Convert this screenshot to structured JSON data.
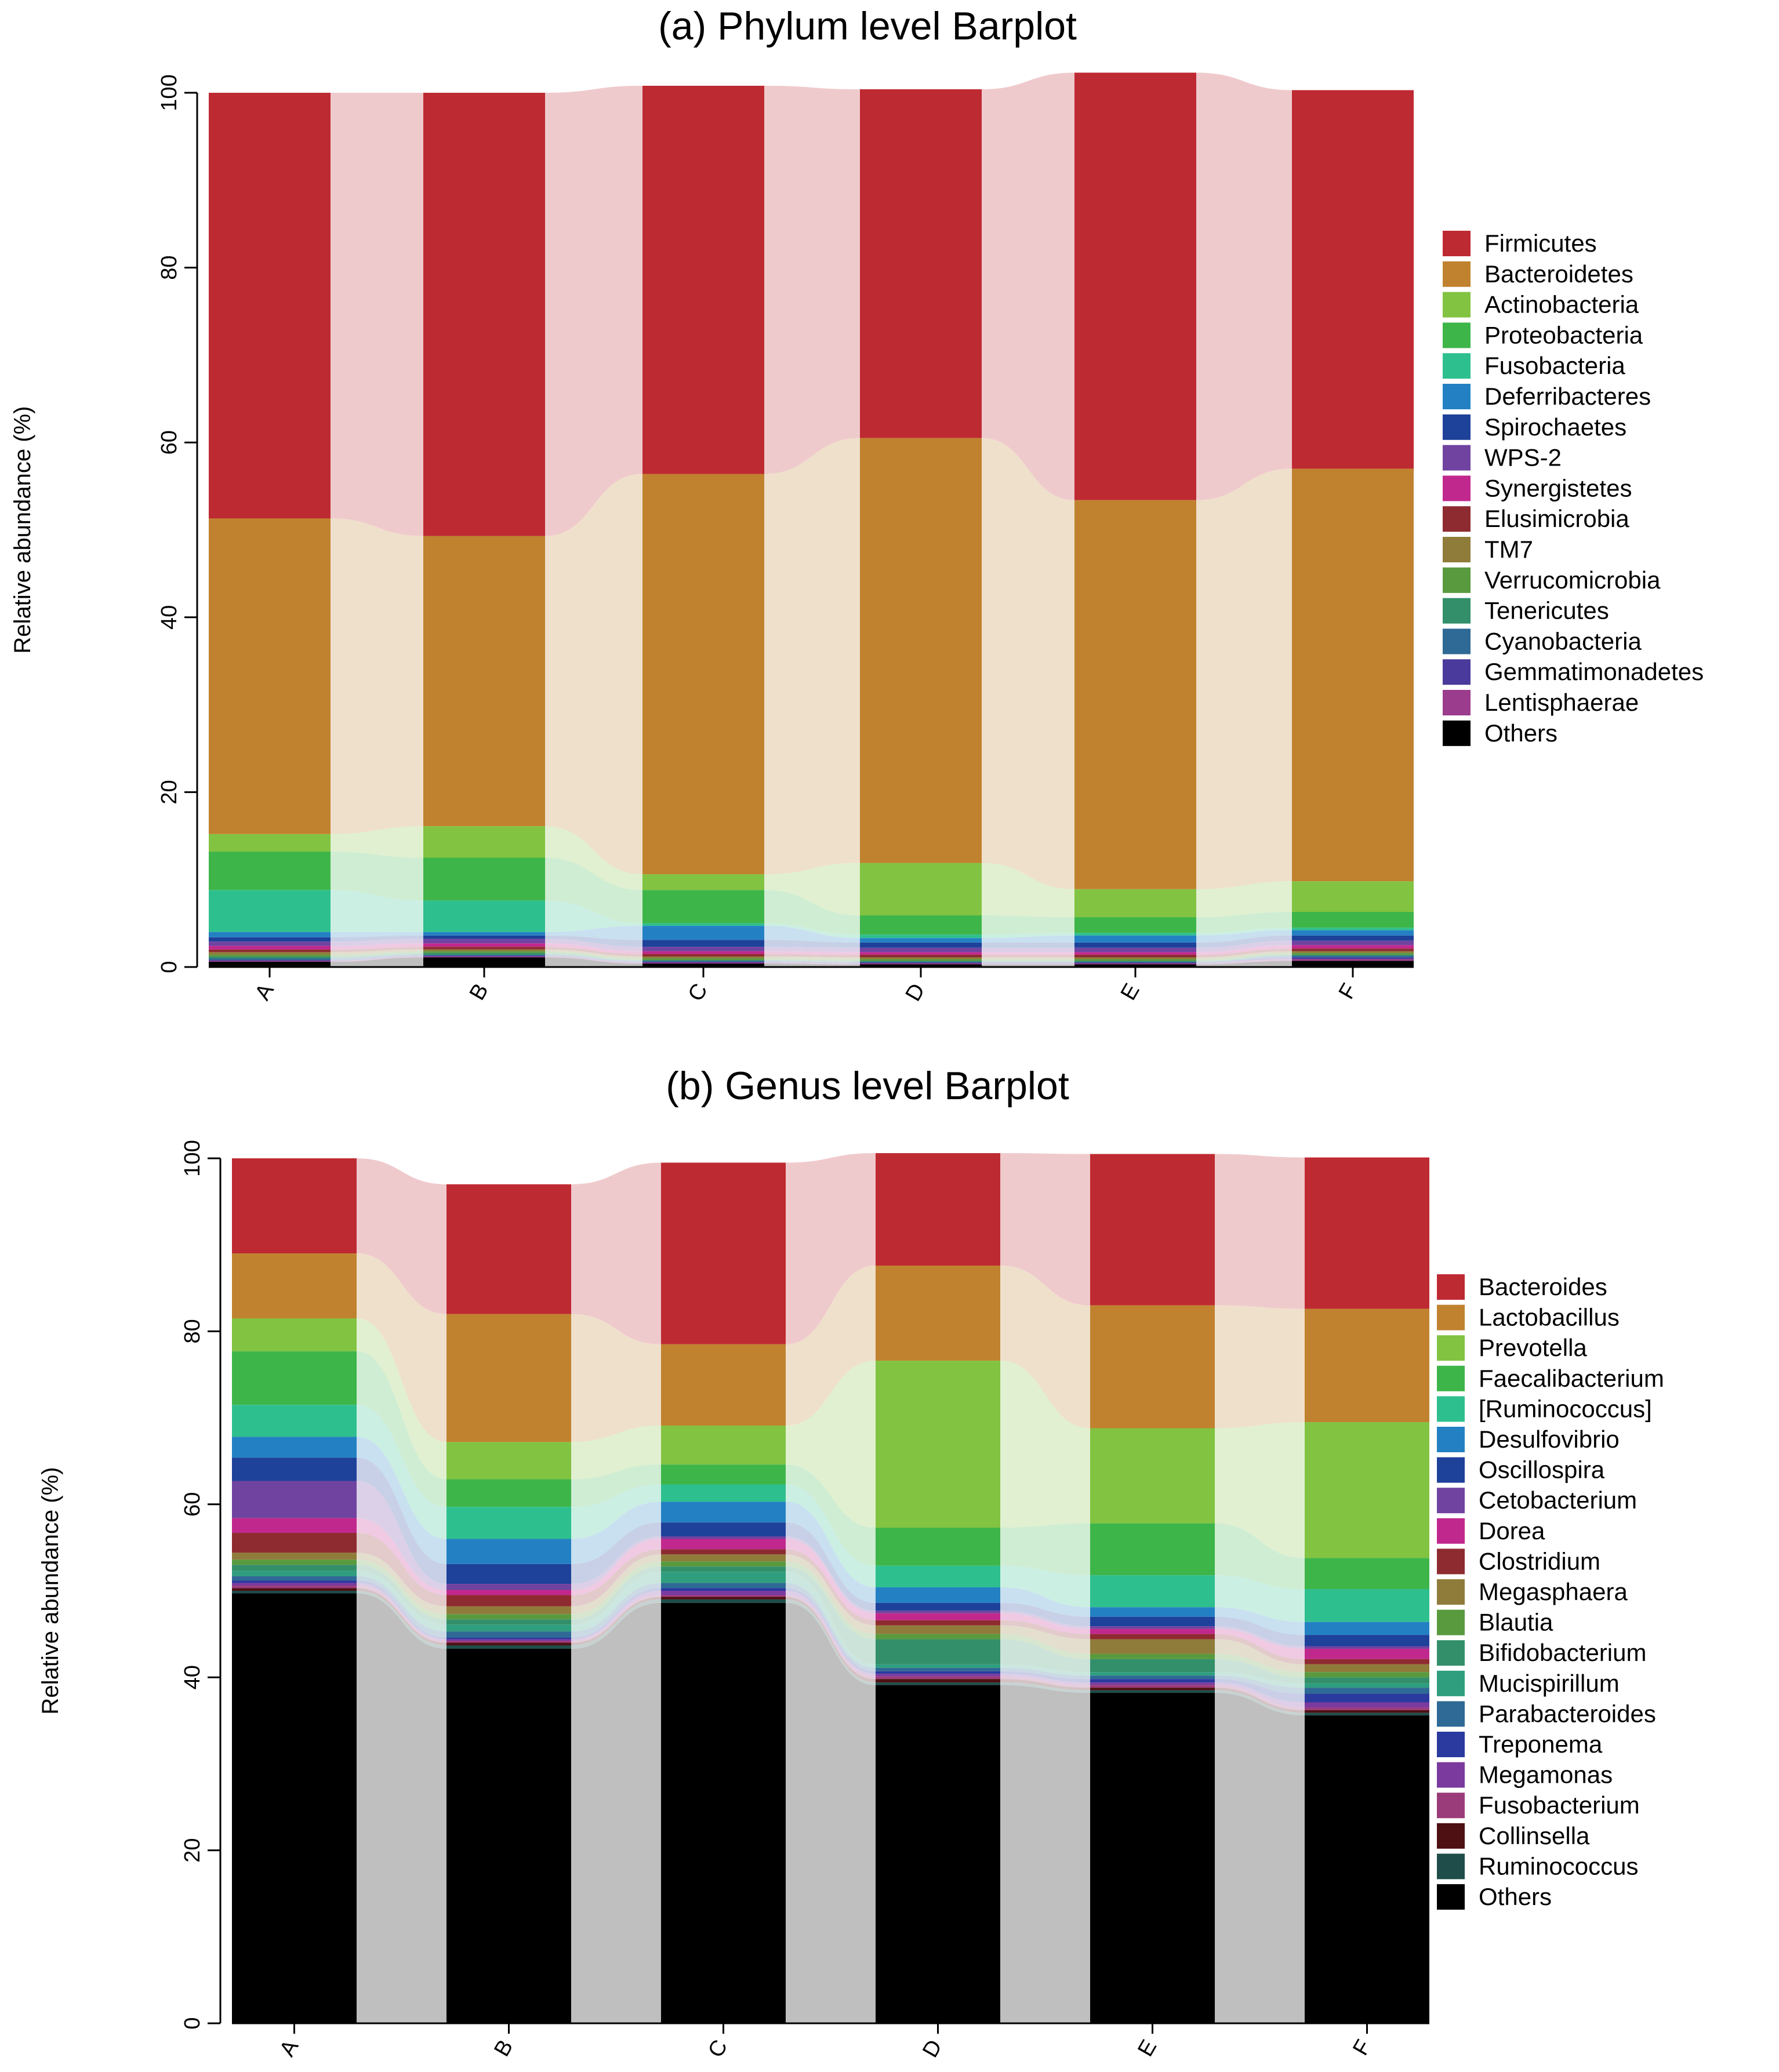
{
  "chart_data": [
    {
      "type": "bar",
      "stacked": true,
      "title": "(a) Phylum level Barplot",
      "ylabel": "Relative abundance (%)",
      "xlabel": "",
      "ylim": [
        0,
        100
      ],
      "yticks": [
        0,
        20,
        40,
        60,
        80,
        100
      ],
      "categories": [
        "A",
        "B",
        "C",
        "D",
        "E",
        "F"
      ],
      "legend_position": "right",
      "series": [
        {
          "name": "Firmicutes",
          "color": "#BE2A32",
          "values": [
            48.7,
            50.7,
            44.4,
            39.9,
            48.9,
            43.3
          ]
        },
        {
          "name": "Bacteroidetes",
          "color": "#C0822F",
          "values": [
            36.1,
            33.2,
            45.8,
            48.6,
            44.5,
            47.2
          ]
        },
        {
          "name": "Actinobacteria",
          "color": "#82C341",
          "values": [
            2.0,
            3.6,
            1.8,
            6.0,
            3.2,
            3.5
          ]
        },
        {
          "name": "Proteobacteria",
          "color": "#3EB549",
          "values": [
            4.4,
            4.9,
            3.8,
            2.2,
            1.8,
            1.8
          ]
        },
        {
          "name": "Fusobacteria",
          "color": "#2EBF8E",
          "values": [
            4.8,
            3.6,
            0.3,
            0.4,
            0.3,
            0.3
          ]
        },
        {
          "name": "Deferribacteres",
          "color": "#2381C3",
          "values": [
            0.6,
            0.4,
            1.6,
            0.5,
            0.8,
            0.6
          ]
        },
        {
          "name": "Spirochaetes",
          "color": "#1E419A",
          "values": [
            0.5,
            0.4,
            0.8,
            0.6,
            0.6,
            0.6
          ]
        },
        {
          "name": "WPS-2",
          "color": "#7043A0",
          "values": [
            0.5,
            0.5,
            0.5,
            0.5,
            0.5,
            0.5
          ]
        },
        {
          "name": "Synergistetes",
          "color": "#C1288D",
          "values": [
            0.4,
            0.4,
            0.3,
            0.3,
            0.3,
            0.4
          ]
        },
        {
          "name": "Elusimicrobia",
          "color": "#8E2B30",
          "values": [
            0.3,
            0.3,
            0.3,
            0.3,
            0.3,
            0.3
          ]
        },
        {
          "name": "TM7",
          "color": "#8F7C3A",
          "values": [
            0.3,
            0.2,
            0.2,
            0.2,
            0.2,
            0.2
          ]
        },
        {
          "name": "Verrucomicrobia",
          "color": "#5A9A3F",
          "values": [
            0.2,
            0.2,
            0.2,
            0.2,
            0.2,
            0.2
          ]
        },
        {
          "name": "Tenericutes",
          "color": "#328F69",
          "values": [
            0.2,
            0.2,
            0.1,
            0.1,
            0.1,
            0.1
          ]
        },
        {
          "name": "Cyanobacteria",
          "color": "#2F6995",
          "values": [
            0.2,
            0.1,
            0.1,
            0.1,
            0.1,
            0.2
          ]
        },
        {
          "name": "Gemmatimonadetes",
          "color": "#4A3A9B",
          "values": [
            0.1,
            0.1,
            0.1,
            0.1,
            0.1,
            0.2
          ]
        },
        {
          "name": "Lentisphaerae",
          "color": "#9B3C8D",
          "values": [
            0.1,
            0.1,
            0.1,
            0.1,
            0.1,
            0.2
          ]
        },
        {
          "name": "Others",
          "color": "#000000",
          "values": [
            0.6,
            1.1,
            0.4,
            0.3,
            0.3,
            0.7
          ]
        }
      ]
    },
    {
      "type": "bar",
      "stacked": true,
      "title": "(b) Genus level Barplot",
      "ylabel": "Relative abundance (%)",
      "xlabel": "",
      "ylim": [
        0,
        100
      ],
      "yticks": [
        0,
        20,
        40,
        60,
        80,
        100
      ],
      "categories": [
        "A",
        "B",
        "C",
        "D",
        "E",
        "F"
      ],
      "legend_position": "right",
      "series": [
        {
          "name": "Bacteroides",
          "color": "#BE2A32",
          "values": [
            11.0,
            15.0,
            21.0,
            13.0,
            17.5,
            17.5
          ]
        },
        {
          "name": "Lactobacillus",
          "color": "#C0822F",
          "values": [
            7.5,
            14.8,
            9.4,
            11.0,
            14.2,
            13.1
          ]
        },
        {
          "name": "Prevotella",
          "color": "#82C341",
          "values": [
            3.8,
            4.3,
            4.5,
            19.3,
            11.0,
            15.7
          ]
        },
        {
          "name": "Faecalibacterium",
          "color": "#3EB549",
          "values": [
            6.2,
            3.2,
            2.3,
            4.4,
            6.0,
            3.6
          ]
        },
        {
          "name": "[Ruminococcus]",
          "color": "#2EBF8E",
          "values": [
            3.7,
            3.7,
            2.0,
            2.5,
            3.7,
            3.8
          ]
        },
        {
          "name": "Desulfovibrio",
          "color": "#2381C3",
          "values": [
            2.4,
            2.9,
            2.4,
            1.8,
            1.1,
            1.5
          ]
        },
        {
          "name": "Oscillospira",
          "color": "#1E419A",
          "values": [
            2.7,
            2.3,
            1.6,
            0.9,
            1.1,
            1.3
          ]
        },
        {
          "name": "Cetobacterium",
          "color": "#7043A0",
          "values": [
            4.3,
            0.7,
            0.3,
            0.3,
            0.3,
            0.3
          ]
        },
        {
          "name": "Dorea",
          "color": "#C1288D",
          "values": [
            1.7,
            0.6,
            1.2,
            0.8,
            0.6,
            1.2
          ]
        },
        {
          "name": "Clostridium",
          "color": "#8E2B30",
          "values": [
            2.3,
            1.3,
            0.6,
            0.6,
            0.6,
            0.6
          ]
        },
        {
          "name": "Megasphaera",
          "color": "#8F7C3A",
          "values": [
            0.8,
            0.9,
            0.8,
            1.0,
            1.7,
            0.9
          ]
        },
        {
          "name": "Blautia",
          "color": "#5A9A3F",
          "values": [
            0.6,
            0.6,
            0.6,
            0.6,
            0.6,
            0.6
          ]
        },
        {
          "name": "Bifidobacterium",
          "color": "#328F69",
          "values": [
            0.7,
            0.6,
            0.6,
            2.9,
            1.5,
            0.7
          ]
        },
        {
          "name": "Mucispirillum",
          "color": "#2F9E7E",
          "values": [
            0.6,
            0.8,
            1.3,
            0.4,
            0.4,
            0.5
          ]
        },
        {
          "name": "Parabacteroides",
          "color": "#2F6995",
          "values": [
            0.5,
            0.7,
            0.6,
            0.4,
            0.4,
            0.7
          ]
        },
        {
          "name": "Treponema",
          "color": "#2A3A9E",
          "values": [
            0.3,
            0.2,
            0.3,
            0.3,
            0.4,
            1.0
          ]
        },
        {
          "name": "Megamonas",
          "color": "#7B3A9E",
          "values": [
            0.3,
            0.2,
            0.5,
            0.3,
            0.3,
            0.6
          ]
        },
        {
          "name": "Fusobacterium",
          "color": "#9B3C7A",
          "values": [
            0.3,
            0.2,
            0.2,
            0.3,
            0.3,
            0.3
          ]
        },
        {
          "name": "Collinsella",
          "color": "#4E1013",
          "values": [
            0.3,
            0.3,
            0.3,
            0.4,
            0.3,
            0.3
          ]
        },
        {
          "name": "Ruminococcus",
          "color": "#1E4D4A",
          "values": [
            0.3,
            0.4,
            0.4,
            0.3,
            0.3,
            0.3
          ]
        },
        {
          "name": "Others",
          "color": "#000000",
          "values": [
            49.7,
            43.3,
            48.6,
            39.1,
            38.2,
            35.6
          ]
        }
      ]
    }
  ]
}
